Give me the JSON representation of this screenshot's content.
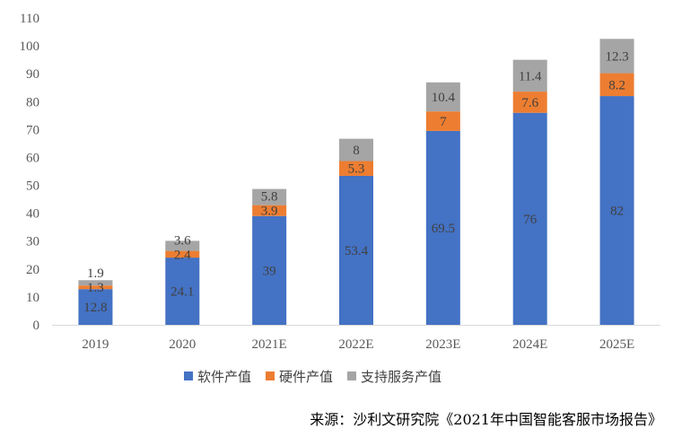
{
  "chart_data": {
    "type": "bar",
    "stacked": true,
    "categories": [
      "2019",
      "2020",
      "2021E",
      "2022E",
      "2023E",
      "2024E",
      "2025E"
    ],
    "series": [
      {
        "name": "软件产值",
        "color": "#4472C4",
        "values": [
          12.8,
          24.1,
          39,
          53.4,
          69.5,
          76,
          82
        ]
      },
      {
        "name": "硬件产值",
        "color": "#ED7D31",
        "values": [
          1.3,
          2.4,
          3.9,
          5.3,
          7,
          7.6,
          8.2
        ]
      },
      {
        "name": "支持服务产值",
        "color": "#A5A5A5",
        "values": [
          1.9,
          3.6,
          5.8,
          8,
          10.4,
          11.4,
          12.3
        ]
      }
    ],
    "title": "",
    "xlabel": "",
    "ylabel": "",
    "ylim": [
      0,
      110
    ],
    "yticks": [
      0,
      10,
      20,
      30,
      40,
      50,
      60,
      70,
      80,
      90,
      100,
      110
    ],
    "grid": false,
    "legend": "bottom"
  },
  "source": "来源：沙利文研究院《2021年中国智能客服市场报告》"
}
